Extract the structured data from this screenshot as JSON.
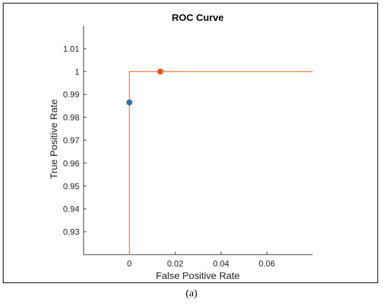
{
  "chart_data": {
    "type": "line",
    "title": "ROC Curve",
    "xlabel": "False Positive Rate",
    "ylabel": "True Positive Rate",
    "xlim": [
      -0.02,
      0.08
    ],
    "ylim": [
      0.92,
      1.02
    ],
    "xticks": [
      0,
      0.02,
      0.04,
      0.06
    ],
    "xtick_labels": [
      "0",
      "0.02",
      "0.04",
      "0.06"
    ],
    "yticks": [
      0.93,
      0.94,
      0.95,
      0.96,
      0.97,
      0.98,
      0.99,
      1,
      1.01
    ],
    "ytick_labels": [
      "0.93",
      "0.94",
      "0.95",
      "0.96",
      "0.97",
      "0.98",
      "0.99",
      "1",
      "1.01"
    ],
    "grid": false,
    "series": [
      {
        "kind": "step-line",
        "color": "#ED7D4F",
        "x": [
          0,
          0,
          0.08
        ],
        "y": [
          0.92,
          1,
          1
        ]
      },
      {
        "kind": "point",
        "color": "#E8541C",
        "x": [
          0.0135
        ],
        "y": [
          1
        ]
      },
      {
        "kind": "point",
        "color": "#2F6FB0",
        "x": [
          0
        ],
        "y": [
          0.9865
        ]
      }
    ]
  },
  "caption": "(a)"
}
